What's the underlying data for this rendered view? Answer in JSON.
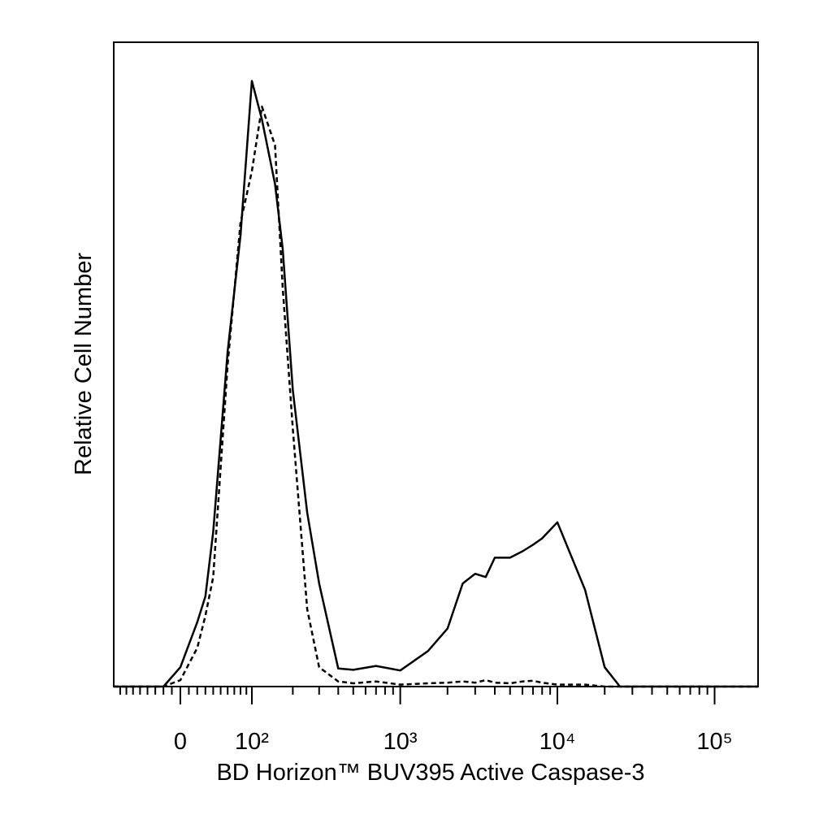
{
  "chart_data": {
    "type": "line",
    "x_label": "BD Horizon™ BUV395 Active Caspase-3",
    "y_label": "Relative Cell Number",
    "xscale": "biexponential",
    "xlim": [
      -91,
      189000
    ],
    "xticks": [
      0,
      {
        "value": 100,
        "label": "10²"
      },
      {
        "value": 1000,
        "label": "10³"
      },
      {
        "value": 10000,
        "label": "10⁴"
      },
      {
        "value": 100000,
        "label": "10⁵"
      }
    ],
    "xticks_minor": [
      -80,
      -70,
      -60,
      -50,
      -40,
      -30,
      -20,
      -10,
      10,
      20,
      30,
      40,
      50,
      60,
      70,
      80,
      90,
      200,
      300,
      400,
      500,
      600,
      700,
      800,
      900,
      2000,
      3000,
      4000,
      5000,
      6000,
      7000,
      8000,
      9000,
      20000,
      30000,
      40000,
      50000,
      60000,
      70000,
      80000,
      90000
    ],
    "ylim": [
      0,
      100
    ],
    "x": [
      -91,
      -20,
      0,
      20,
      30,
      40,
      60,
      80,
      100,
      120,
      150,
      170,
      200,
      250,
      300,
      400,
      500,
      700,
      1000,
      1500,
      2000,
      2500,
      3000,
      3500,
      4000,
      5000,
      6000,
      7000,
      8000,
      10000,
      15000,
      20000,
      25000,
      30000,
      60000,
      189000
    ],
    "series": [
      {
        "color": "#000000",
        "dashed": false,
        "values": [
          0,
          0,
          3,
          10,
          14,
          24,
          52,
          70,
          94,
          88,
          78,
          68,
          46,
          27,
          16,
          2.8,
          2.6,
          3.2,
          2.5,
          5.5,
          9,
          16,
          17.5,
          17,
          20,
          20,
          21,
          22,
          23,
          25.5,
          15,
          3,
          0,
          0,
          0,
          0
        ]
      },
      {
        "color": "#000000",
        "dashed": true,
        "values": [
          0,
          0,
          1,
          6,
          11,
          17,
          50,
          72,
          80,
          90,
          84,
          62,
          40,
          12,
          3,
          0.8,
          0.5,
          0.8,
          0.3,
          0.5,
          0.6,
          0.8,
          0.6,
          1,
          0.6,
          0.5,
          0.8,
          0.9,
          0.6,
          0.3,
          0.3,
          0,
          0,
          0,
          0,
          0
        ]
      }
    ]
  }
}
